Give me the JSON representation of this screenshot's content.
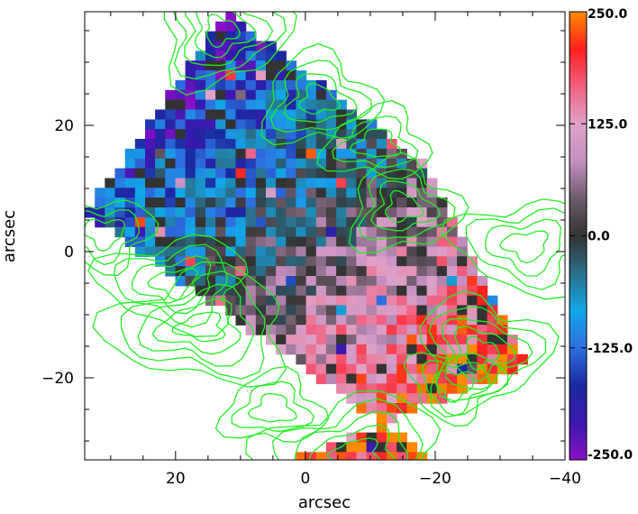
{
  "chart_data": {
    "type": "heatmap",
    "title": "",
    "xlabel": "arcsec",
    "ylabel": "arcsec",
    "xlim": [
      34,
      -40
    ],
    "ylim": [
      -33,
      38
    ],
    "x_ticks": [
      20,
      0,
      -20,
      -40
    ],
    "x_tick_labels": [
      "20",
      "0",
      "−20",
      "−40"
    ],
    "y_ticks": [
      20,
      0,
      -20
    ],
    "y_tick_labels": [
      "20",
      "0",
      "−20"
    ],
    "colorbar": {
      "min": -250.0,
      "max": 250.0,
      "tick_values": [
        250.0,
        125.0,
        0.0,
        -125.0,
        -250.0
      ],
      "tick_labels": [
        "250.0",
        "125.0",
        "0.0",
        "-125.0",
        "-250.0"
      ],
      "colors": [
        "#8a10c8",
        "#3a18b0",
        "#1a2aa0",
        "#2e6fe0",
        "#11a8e8",
        "#2a6f8a",
        "#333333",
        "#6e5b6b",
        "#c48fc0",
        "#e0a3c8",
        "#f06080",
        "#ff2020",
        "#ff8a00"
      ]
    },
    "map_corners_arcsec": [
      [
        34,
        6
      ],
      [
        12,
        38
      ],
      [
        -18,
        14
      ],
      [
        -34,
        -18
      ],
      [
        2,
        -33
      ],
      [
        -20,
        -33
      ]
    ],
    "overlay": {
      "type": "contour",
      "color": "#22ee22",
      "peaks": [
        {
          "x": 31,
          "y": 3
        },
        {
          "x": 20,
          "y": -5
        },
        {
          "x": 16,
          "y": -12
        },
        {
          "x": 5,
          "y": -25
        },
        {
          "x": -15,
          "y": 7
        },
        {
          "x": -27,
          "y": -16
        },
        {
          "x": -23,
          "y": -21
        },
        {
          "x": -34,
          "y": 1
        },
        {
          "x": -8,
          "y": -32
        },
        {
          "x": -11,
          "y": 17
        },
        {
          "x": -2,
          "y": 24
        },
        {
          "x": 13,
          "y": 35
        }
      ]
    }
  }
}
